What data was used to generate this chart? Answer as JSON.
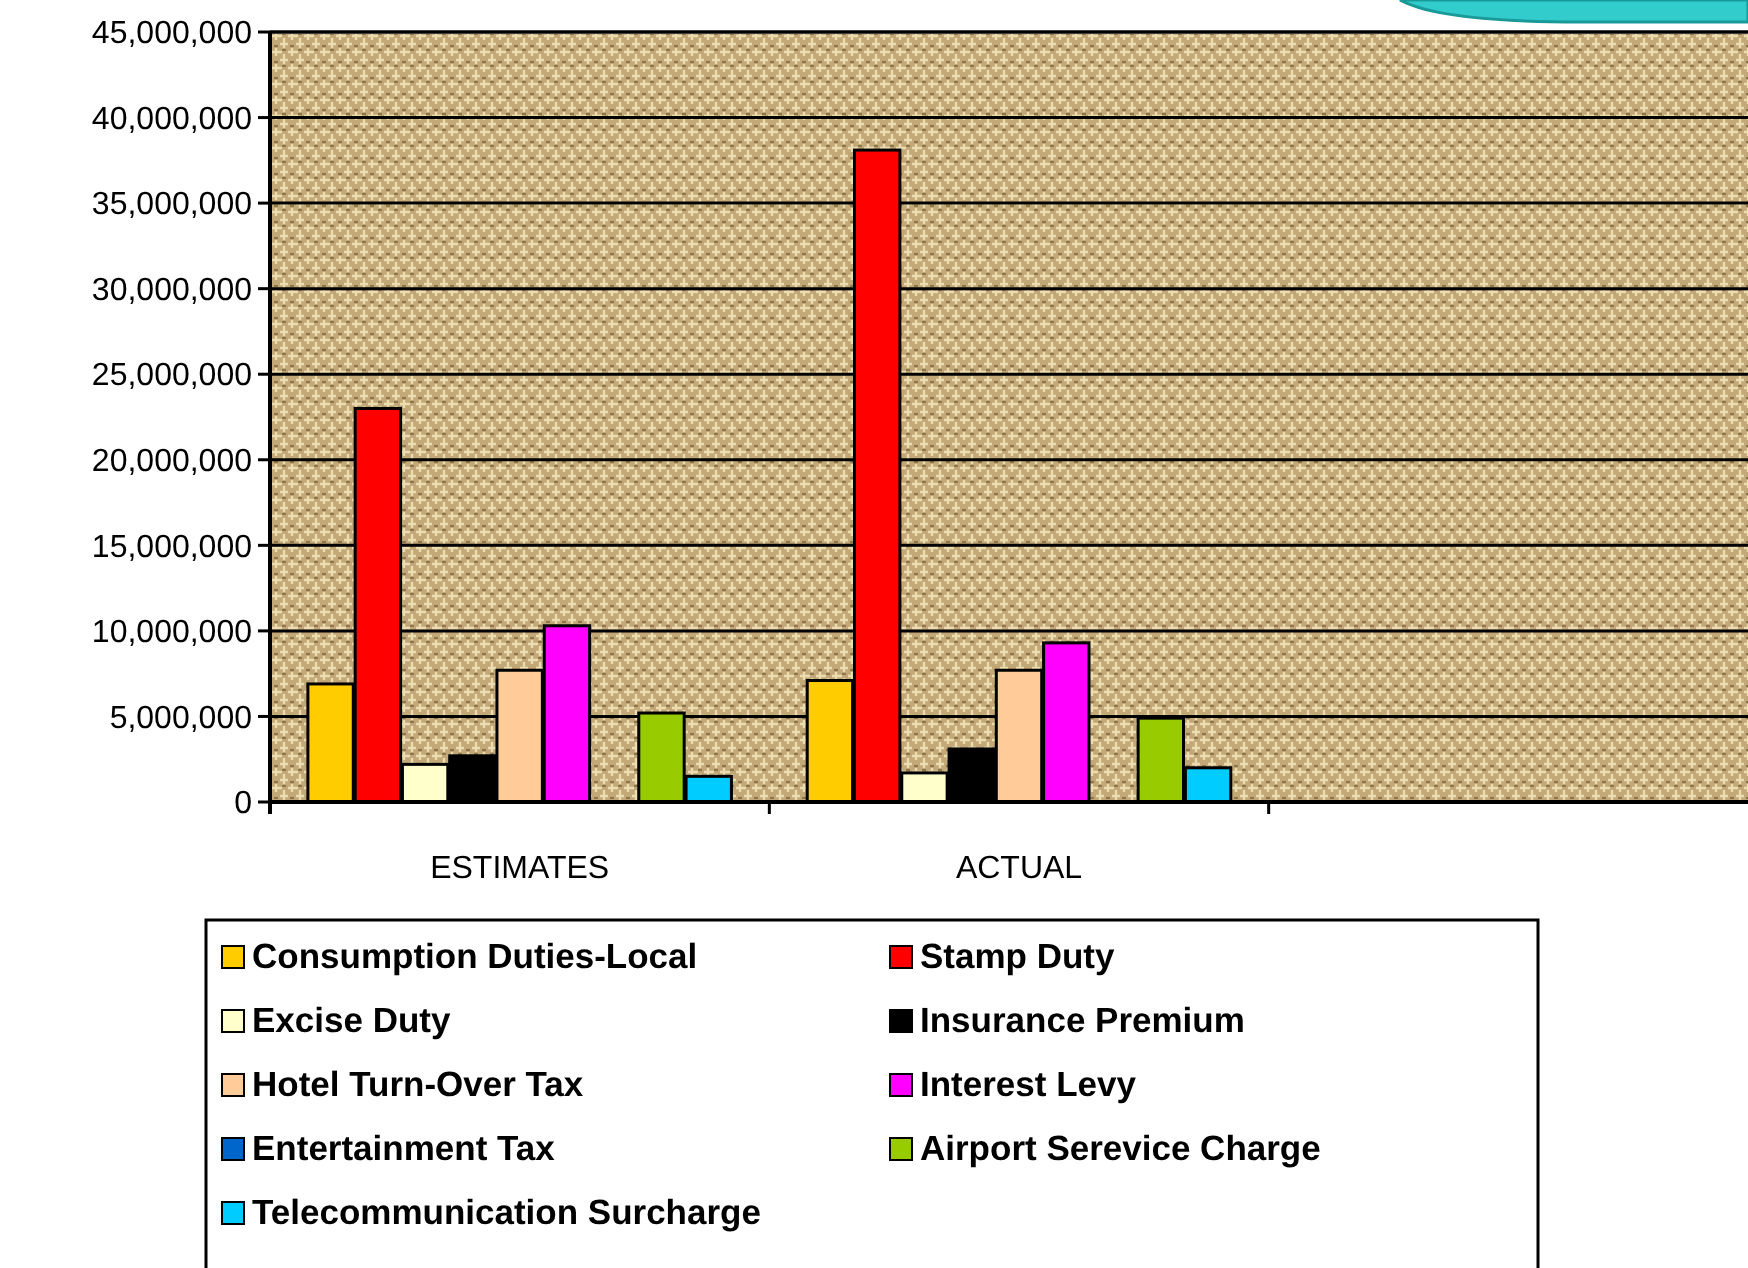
{
  "chart_data": {
    "type": "bar",
    "categories": [
      "ESTIMATES",
      "ACTUAL",
      null
    ],
    "series": [
      {
        "name": "Consumption Duties-Local",
        "color": "#ffcc00",
        "values": [
          6900000,
          7100000,
          null
        ]
      },
      {
        "name": "Stamp Duty",
        "color": "#ff0000",
        "values": [
          23000000,
          38100000,
          null
        ]
      },
      {
        "name": "Excise Duty",
        "color": "#ffffcc",
        "values": [
          2200000,
          1700000,
          null
        ]
      },
      {
        "name": "Insurance Premium",
        "color": "#000000",
        "values": [
          2700000,
          3100000,
          null
        ]
      },
      {
        "name": "Hotel Turn-Over Tax",
        "color": "#ffcc99",
        "values": [
          7700000,
          7700000,
          null
        ]
      },
      {
        "name": "Interest Levy",
        "color": "#ff00ff",
        "values": [
          10300000,
          9300000,
          null
        ]
      },
      {
        "name": "Entertainment Tax",
        "color": "#0066cc",
        "values": [
          0,
          0,
          null
        ]
      },
      {
        "name": "Airport Serevice Charge",
        "color": "#99cc00",
        "values": [
          5200000,
          4900000,
          null
        ]
      },
      {
        "name": "Telecommunication Surcharge",
        "color": "#00ccff",
        "values": [
          1500000,
          2000000,
          null
        ]
      }
    ],
    "ylim": [
      0,
      45000000
    ],
    "yticks": [
      {
        "value": 0,
        "label": "0"
      },
      {
        "value": 5000000,
        "label": "5,000,000"
      },
      {
        "value": 10000000,
        "label": "10,000,000"
      },
      {
        "value": 15000000,
        "label": "15,000,000"
      },
      {
        "value": 20000000,
        "label": "20,000,000"
      },
      {
        "value": 25000000,
        "label": "25,000,000"
      },
      {
        "value": 30000000,
        "label": "30,000,000"
      },
      {
        "value": 35000000,
        "label": "35,000,000"
      },
      {
        "value": 40000000,
        "label": "40,000,000"
      },
      {
        "value": 45000000,
        "label": "45,000,000"
      }
    ],
    "grid": "y",
    "legend": "bottom"
  }
}
